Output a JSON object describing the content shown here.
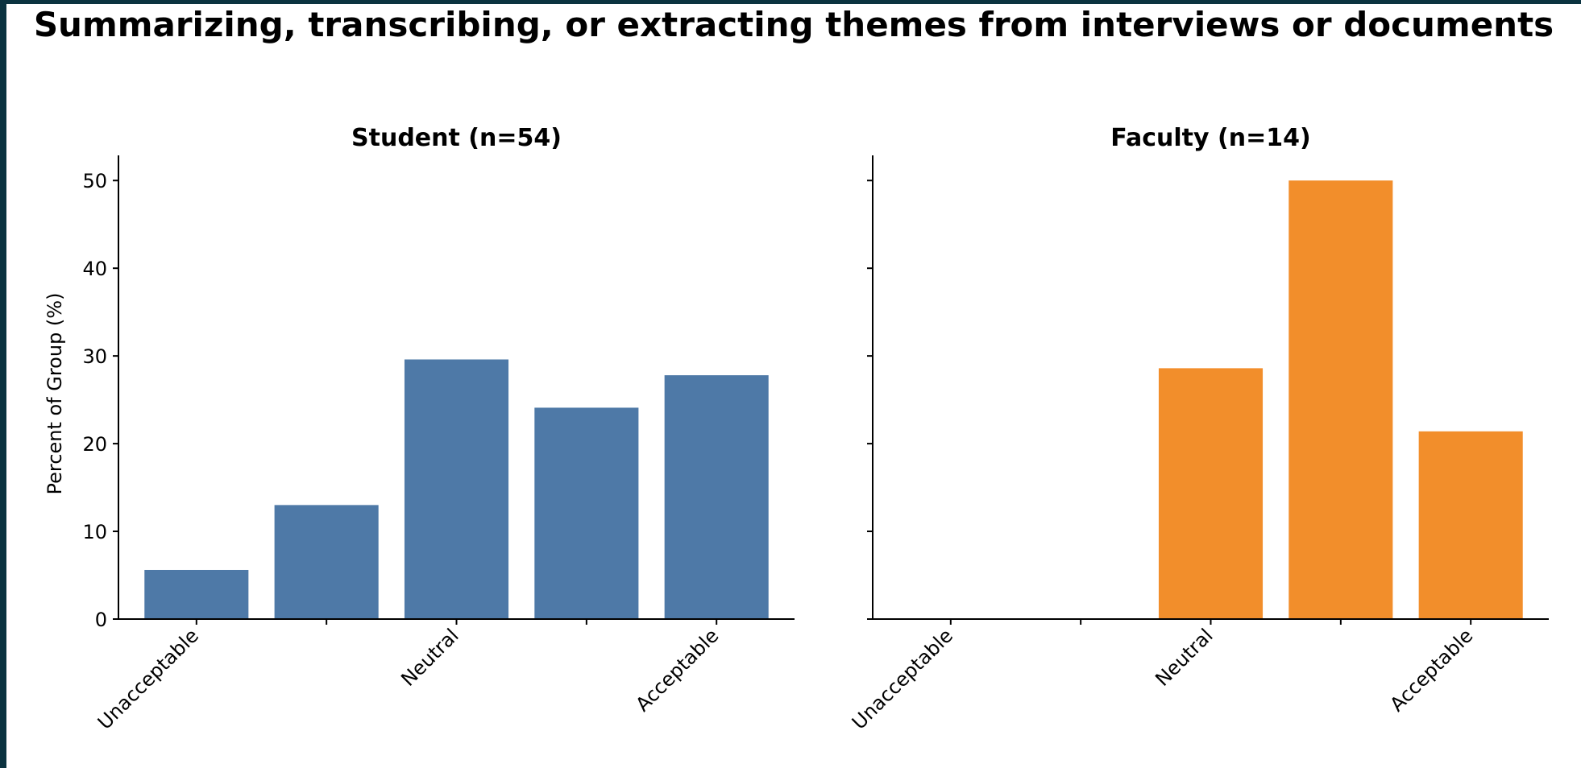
{
  "chart_data": {
    "title": "Summarizing, transcribing, or extracting themes from interviews or documents",
    "ylabel": "Percent of Group (%)",
    "ylim": [
      0,
      52.5
    ],
    "yticks": [
      0,
      10,
      20,
      30,
      40,
      50
    ],
    "grid": false,
    "shared_y": true,
    "panels": [
      {
        "type": "bar",
        "title": "Student (n=54)",
        "color": "#4e79a7",
        "categories": [
          "Unacceptable",
          "",
          "Neutral",
          "",
          "Acceptable"
        ],
        "values": [
          5.6,
          13.0,
          29.6,
          24.1,
          27.8
        ]
      },
      {
        "type": "bar",
        "title": "Faculty (n=14)",
        "color": "#f28e2b",
        "categories": [
          "Unacceptable",
          "",
          "Neutral",
          "",
          "Acceptable"
        ],
        "values": [
          0.0,
          0.0,
          28.6,
          50.0,
          21.4
        ]
      }
    ]
  }
}
